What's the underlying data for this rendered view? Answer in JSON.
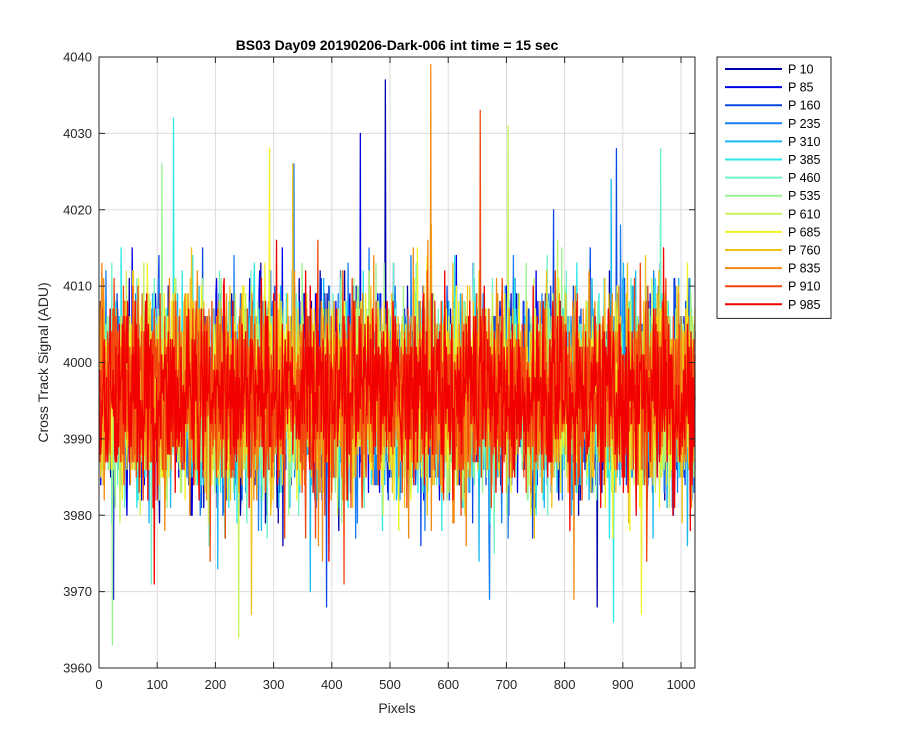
{
  "chart_data": {
    "type": "line",
    "title": "BS03 Day09 20190206-Dark-006 int time = 15 sec",
    "xlabel": "Pixels",
    "ylabel": "Cross Track Signal (ADU)",
    "xlim": [
      0,
      1024
    ],
    "ylim": [
      3960,
      4040
    ],
    "xticks": [
      0,
      100,
      200,
      300,
      400,
      500,
      600,
      700,
      800,
      900,
      1000
    ],
    "yticks": [
      3960,
      3970,
      3980,
      3990,
      4000,
      4010,
      4020,
      4030,
      4040
    ],
    "grid": true,
    "legend_position": "outside-right-top",
    "series": [
      {
        "name": "P 10",
        "color": "#0000AA",
        "mean": 3996,
        "spread": 6.2,
        "max": 4037,
        "min": 3968
      },
      {
        "name": "P 85",
        "color": "#0000E6",
        "mean": 3996,
        "spread": 6.2,
        "max": 4030,
        "min": 3969
      },
      {
        "name": "P 160",
        "color": "#0A48E6",
        "mean": 3996,
        "spread": 6.2,
        "max": 4028,
        "min": 3968
      },
      {
        "name": "P 235",
        "color": "#1A7FF0",
        "mean": 3996,
        "spread": 6.2,
        "max": 4026,
        "min": 3969
      },
      {
        "name": "P 310",
        "color": "#19B8F0",
        "mean": 3996,
        "spread": 6.2,
        "max": 4024,
        "min": 3970
      },
      {
        "name": "P 385",
        "color": "#2AE8E6",
        "mean": 3996,
        "spread": 6.2,
        "max": 4032,
        "min": 3966
      },
      {
        "name": "P 460",
        "color": "#6FF2C4",
        "mean": 3996,
        "spread": 6.2,
        "max": 4028,
        "min": 3971
      },
      {
        "name": "P 535",
        "color": "#9BF292",
        "mean": 3996,
        "spread": 6.2,
        "max": 4026,
        "min": 3963
      },
      {
        "name": "P 610",
        "color": "#C9F25A",
        "mean": 3996,
        "spread": 6.2,
        "max": 4031,
        "min": 3964
      },
      {
        "name": "P 685",
        "color": "#F2F226",
        "mean": 3996,
        "spread": 6.2,
        "max": 4028,
        "min": 3967
      },
      {
        "name": "P 760",
        "color": "#F2C21A",
        "mean": 3996,
        "spread": 6.2,
        "max": 4026,
        "min": 3967
      },
      {
        "name": "P 835",
        "color": "#F28A14",
        "mean": 3996,
        "spread": 6.2,
        "max": 4039,
        "min": 3969
      },
      {
        "name": "P 910",
        "color": "#F2470E",
        "mean": 3996,
        "spread": 6.2,
        "max": 4033,
        "min": 3971
      },
      {
        "name": "P 985",
        "color": "#F20000",
        "mean": 3996,
        "spread": 5.8,
        "max": 4016,
        "min": 3971
      }
    ]
  }
}
